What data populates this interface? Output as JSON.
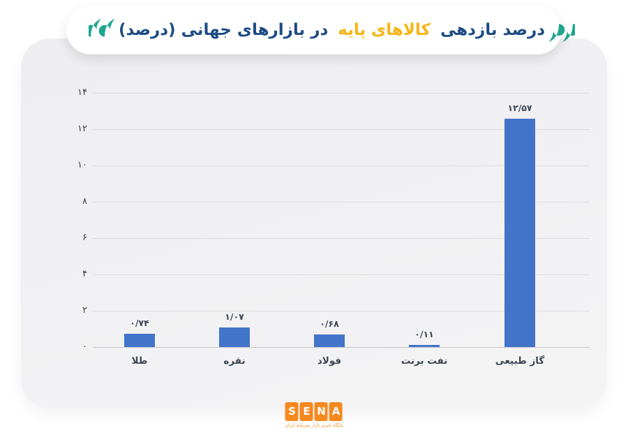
{
  "header": {
    "title_pre": "درصد بازدهی",
    "title_highlight": "کالاهای پایه",
    "title_post": "در بازارهای جهانی (درصد)",
    "title_full": "درصد بازدهی کالاهای پایه در بازارهای جهانی (درصد)",
    "title_color": "#1d4b84",
    "highlight_color": "#f7b414",
    "quote_color": "#1fa78e"
  },
  "chart_data": {
    "type": "bar",
    "title": "درصد بازدهی کالاهای پایه در بازارهای جهانی (درصد)",
    "direction": "rtl",
    "categories_display_left_to_right": [
      "طلا",
      "نقره",
      "فولاد",
      "نفت برنت",
      "گاز طبیعی"
    ],
    "categories_reading_order_rtl": [
      "گاز طبیعی",
      "نفت برنت",
      "فولاد",
      "نقره",
      "طلا"
    ],
    "values": [
      0.74,
      1.07,
      0.68,
      0.11,
      12.57
    ],
    "value_labels": [
      "۰/۷۴",
      "۱/۰۷",
      "۰/۶۸",
      "۰/۱۱",
      "۱۲/۵۷"
    ],
    "xlabel": "",
    "ylabel": "",
    "ylim": [
      0,
      14
    ],
    "yticks": [
      {
        "value": 14,
        "label": "۱۴"
      },
      {
        "value": 12,
        "label": "۱۲"
      },
      {
        "value": 10,
        "label": "۱۰"
      },
      {
        "value": 8,
        "label": "۸"
      },
      {
        "value": 6,
        "label": "۶"
      },
      {
        "value": 4,
        "label": "۴"
      },
      {
        "value": 2,
        "label": "۲"
      },
      {
        "value": 0,
        "label": "۰"
      }
    ],
    "grid": true,
    "legend": false,
    "bar_color": "#4274c9",
    "gridline_color": "#dcdcde",
    "baseline_color": "#c6c6c9"
  },
  "footer": {
    "logo_letters": [
      "S",
      "E",
      "N",
      "A"
    ],
    "logo_color": "#f6891f",
    "tagline": "پایگاه خبری بازار سرمایه ایران"
  }
}
